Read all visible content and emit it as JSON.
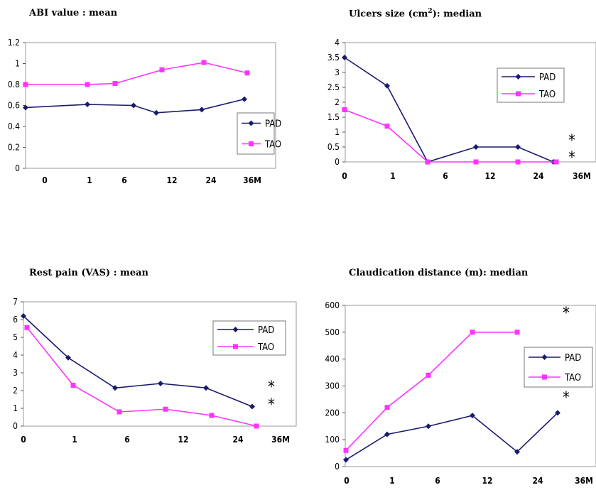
{
  "colors": {
    "pad": "#1a1a6e",
    "tao": "#ff33ff"
  },
  "chart_data": [
    {
      "id": "abi",
      "type": "line",
      "title": "ABI value : mean",
      "categories": [
        "0",
        "1",
        "6",
        "12",
        "24",
        "36M"
      ],
      "series": [
        {
          "name": "PAD",
          "values": [
            0.58,
            0.61,
            0.6,
            0.53,
            0.56,
            0.66
          ]
        },
        {
          "name": "TAO",
          "values": [
            0.8,
            0.8,
            0.81,
            0.94,
            1.01,
            0.91
          ]
        }
      ],
      "yticks": [
        "0",
        "0.2",
        "0.4",
        "0.6",
        "0.8",
        "1",
        "1.2"
      ],
      "ylim": [
        0,
        1.2
      ],
      "grid": false,
      "legend": "right",
      "annotations": []
    },
    {
      "id": "ulcer",
      "type": "line",
      "title": "Ulcers size (cm",
      "title_sup": "2",
      "title_tail": "): median",
      "categories": [
        "0",
        "1",
        "6",
        "12",
        "24",
        "36M"
      ],
      "series": [
        {
          "name": "PAD",
          "values": [
            3.5,
            2.55,
            0.0,
            0.5,
            0.5,
            0.0
          ]
        },
        {
          "name": "TAO",
          "values": [
            1.75,
            1.2,
            0.0,
            0.0,
            0.0,
            0.0
          ]
        }
      ],
      "yticks": [
        "0",
        "0.5",
        "1",
        "1.5",
        "2",
        "2.5",
        "3",
        "3.5",
        "4"
      ],
      "ylim": [
        0,
        4
      ],
      "grid": false,
      "legend": "top-right",
      "annotations": [
        "*",
        "*"
      ]
    },
    {
      "id": "rest",
      "type": "line",
      "title": "Rest pain (VAS) : mean",
      "categories": [
        "0",
        "1",
        "6",
        "12",
        "24",
        "36M"
      ],
      "series": [
        {
          "name": "PAD",
          "values": [
            6.2,
            3.85,
            2.15,
            2.4,
            2.15,
            1.1
          ]
        },
        {
          "name": "TAO",
          "values": [
            5.55,
            2.3,
            0.8,
            0.95,
            0.6,
            0.0
          ]
        }
      ],
      "yticks": [
        "0",
        "1",
        "2",
        "3",
        "4",
        "5",
        "6",
        "7"
      ],
      "ylim": [
        0,
        7
      ],
      "grid": false,
      "legend": "top-right",
      "annotations": [
        "*",
        "*"
      ]
    },
    {
      "id": "claud",
      "type": "line",
      "title": "Claudication distance (m): median",
      "categories": [
        "0",
        "1",
        "6",
        "12",
        "24",
        "36M"
      ],
      "series": [
        {
          "name": "PAD",
          "values": [
            25,
            120,
            150,
            190,
            55,
            200
          ]
        },
        {
          "name": "TAO",
          "values": [
            60,
            220,
            340,
            500,
            500,
            null
          ]
        }
      ],
      "yticks": [
        "0",
        "100",
        "200",
        "300",
        "400",
        "500",
        "600"
      ],
      "ylim": [
        0,
        600
      ],
      "grid": false,
      "legend": "right",
      "annotations": [
        "*",
        "*"
      ]
    }
  ]
}
